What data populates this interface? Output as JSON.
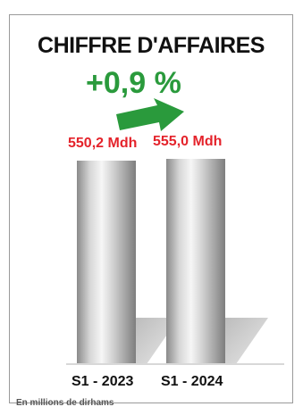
{
  "chart_data": {
    "type": "bar",
    "title": "CHIFFRE D'AFFAIRES",
    "growth": "+0,9 %",
    "categories": [
      "S1 - 2023",
      "S1 - 2024"
    ],
    "values": [
      550.2,
      555.0
    ],
    "value_labels": [
      "550,2 Mdh",
      "555,0 Mdh"
    ],
    "unit_note": "En millions de dirhams",
    "xlabel": "",
    "ylabel": "",
    "grid": false,
    "legend": "none"
  },
  "colors": {
    "title": "#111111",
    "growth": "#2a9a3c",
    "arrow": "#2a9a3c",
    "value_labels": "#e4232b",
    "bar_dark": "#8a8a8a",
    "bar_light": "#f2f2f2"
  },
  "icons": {
    "growth_arrow": "right-arrow-icon"
  }
}
